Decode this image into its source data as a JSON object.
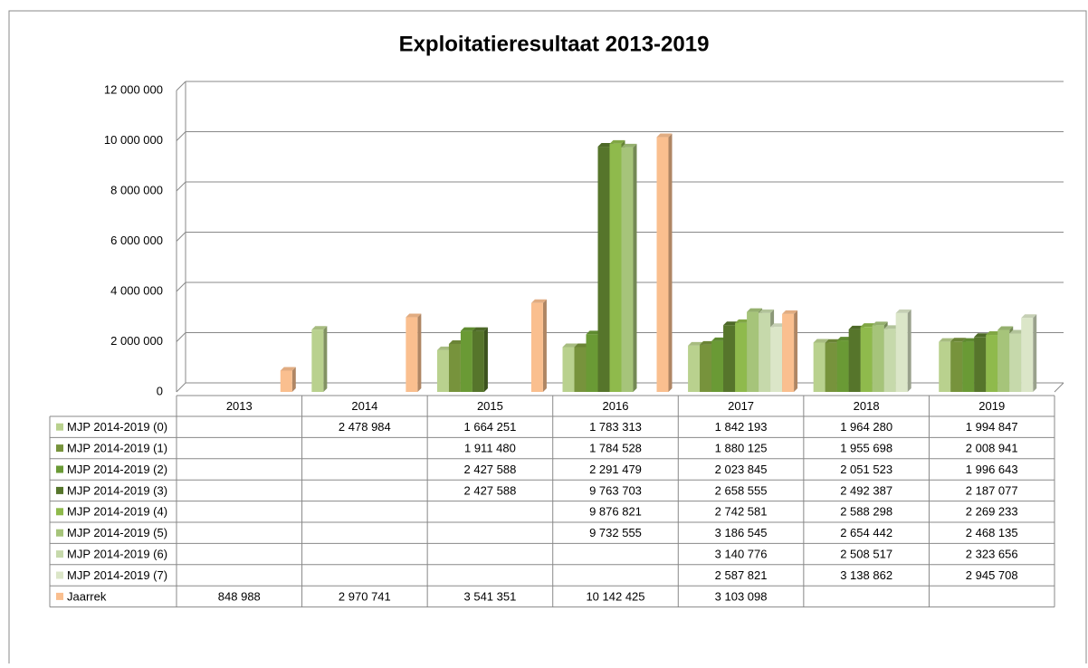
{
  "chart_data": {
    "type": "bar",
    "title": "Exploitatieresultaat 2013-2019",
    "categories": [
      "2013",
      "2014",
      "2015",
      "2016",
      "2017",
      "2018",
      "2019"
    ],
    "ylim": [
      0,
      12000000
    ],
    "yticks": [
      {
        "value": 0,
        "label": "0"
      },
      {
        "value": 2000000,
        "label": "2 000 000"
      },
      {
        "value": 4000000,
        "label": "4 000 000"
      },
      {
        "value": 6000000,
        "label": "6 000 000"
      },
      {
        "value": 8000000,
        "label": "8 000 000"
      },
      {
        "value": 10000000,
        "label": "10 000 000"
      },
      {
        "value": 12000000,
        "label": "12 000 000"
      }
    ],
    "grid": true,
    "series": [
      {
        "name": "MJP 2014-2019 (0)",
        "color": "#b9d18e",
        "values": [
          null,
          2478984,
          1664251,
          1783313,
          1842193,
          1964280,
          1994847
        ],
        "value_labels": [
          null,
          "2 478 984",
          "1 664 251",
          "1 783 313",
          "1 842 193",
          "1 964 280",
          "1 994 847"
        ]
      },
      {
        "name": "MJP 2014-2019 (1)",
        "color": "#77933c",
        "values": [
          null,
          null,
          1911480,
          1784528,
          1880125,
          1955698,
          2008941
        ],
        "value_labels": [
          null,
          null,
          "1 911 480",
          "1 784 528",
          "1 880 125",
          "1 955 698",
          "2 008 941"
        ]
      },
      {
        "name": "MJP 2014-2019 (2)",
        "color": "#6a9a35",
        "values": [
          null,
          null,
          2427588,
          2291479,
          2023845,
          2051523,
          1996643
        ],
        "value_labels": [
          null,
          null,
          "2 427 588",
          "2 291 479",
          "2 023 845",
          "2 051 523",
          "1 996 643"
        ]
      },
      {
        "name": "MJP 2014-2019 (3)",
        "color": "#56752b",
        "values": [
          null,
          null,
          2427588,
          9763703,
          2658555,
          2492387,
          2187077
        ],
        "value_labels": [
          null,
          null,
          "2 427 588",
          "9 763 703",
          "2 658 555",
          "2 492 387",
          "2 187 077"
        ]
      },
      {
        "name": "MJP 2014-2019 (4)",
        "color": "#8fba4c",
        "values": [
          null,
          null,
          null,
          9876821,
          2742581,
          2588298,
          2269233
        ],
        "value_labels": [
          null,
          null,
          null,
          "9 876 821",
          "2 742 581",
          "2 588 298",
          "2 269 233"
        ]
      },
      {
        "name": "MJP 2014-2019 (5)",
        "color": "#a6c47a",
        "values": [
          null,
          null,
          null,
          9732555,
          3186545,
          2654442,
          2468135
        ],
        "value_labels": [
          null,
          null,
          null,
          "9 732 555",
          "3 186 545",
          "2 654 442",
          "2 468 135"
        ]
      },
      {
        "name": "MJP 2014-2019 (6)",
        "color": "#c6d9ab",
        "values": [
          null,
          null,
          null,
          null,
          3140776,
          2508517,
          2323656
        ],
        "value_labels": [
          null,
          null,
          null,
          null,
          "3 140 776",
          "2 508 517",
          "2 323 656"
        ]
      },
      {
        "name": "MJP 2014-2019 (7)",
        "color": "#dbe6c8",
        "values": [
          null,
          null,
          null,
          null,
          2587821,
          3138862,
          2945708
        ],
        "value_labels": [
          null,
          null,
          null,
          null,
          "2 587 821",
          "3 138 862",
          "2 945 708"
        ]
      },
      {
        "name": "Jaarrek",
        "color": "#fabf8f",
        "values": [
          848988,
          2970741,
          3541351,
          10142425,
          3103098,
          null,
          null
        ],
        "value_labels": [
          "848 988",
          "2 970 741",
          "3 541 351",
          "10 142 425",
          "3 103 098",
          null,
          null
        ]
      }
    ]
  }
}
